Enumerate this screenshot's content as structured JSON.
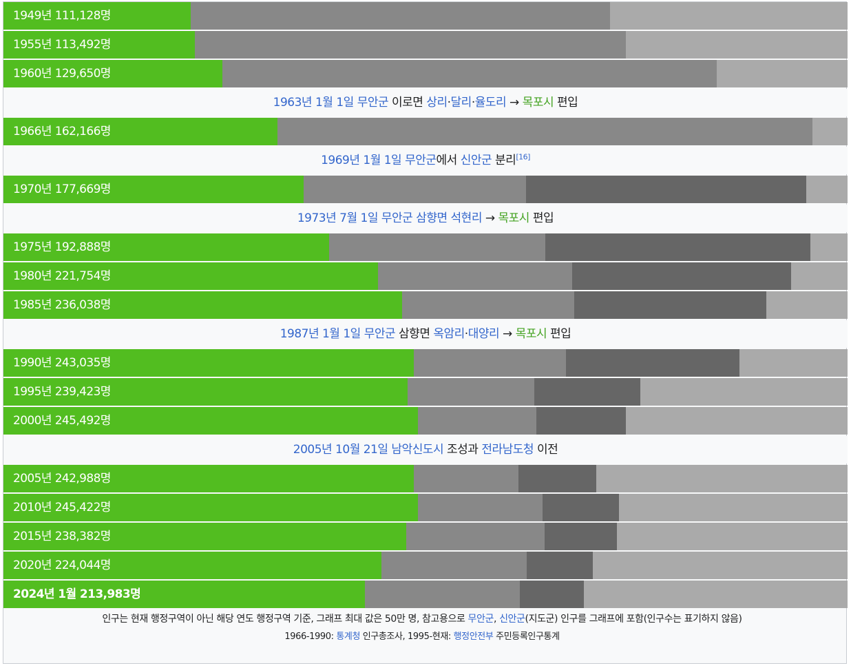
{
  "chart_data": {
    "type": "bar",
    "orientation": "horizontal",
    "xlim": [
      0,
      500000
    ],
    "colors": {
      "mokpo": "#52bd20",
      "muan": "#888888",
      "sinan": "#666666",
      "rest": "#aaaaaa"
    },
    "rows": [
      {
        "kind": "bar",
        "label": "1949년 111,128명",
        "segments": [
          111128,
          248000
        ],
        "bold": false
      },
      {
        "kind": "bar",
        "label": "1955년 113,492명",
        "segments": [
          113492,
          255000
        ],
        "bold": false
      },
      {
        "kind": "bar",
        "label": "1960년 129,650명",
        "segments": [
          129650,
          293000
        ],
        "bold": false
      },
      {
        "kind": "event",
        "parts": [
          {
            "t": "1963년 1월 1일",
            "c": "blue"
          },
          {
            "t": " ",
            "c": ""
          },
          {
            "t": "무안군",
            "c": "blue"
          },
          {
            "t": " 이로면 ",
            "c": ""
          },
          {
            "t": "상리",
            "c": "blue"
          },
          {
            "t": "·",
            "c": ""
          },
          {
            "t": "달리",
            "c": "blue"
          },
          {
            "t": "·",
            "c": ""
          },
          {
            "t": "율도리",
            "c": "blue"
          },
          {
            "t": " → ",
            "c": ""
          },
          {
            "t": "목포시",
            "c": "green"
          },
          {
            "t": " 편입",
            "c": ""
          }
        ]
      },
      {
        "kind": "bar",
        "label": "1966년 162,166명",
        "segments": [
          162166,
          317000
        ],
        "bold": false
      },
      {
        "kind": "event",
        "parts": [
          {
            "t": "1969년 1월 1일",
            "c": "blue"
          },
          {
            "t": " ",
            "c": ""
          },
          {
            "t": "무안군",
            "c": "blue"
          },
          {
            "t": "에서 ",
            "c": ""
          },
          {
            "t": "신안군",
            "c": "blue"
          },
          {
            "t": " 분리",
            "c": ""
          },
          {
            "t": "[16]",
            "c": "blue",
            "sup": true
          }
        ]
      },
      {
        "kind": "bar",
        "label": "1970년 177,669명",
        "segments": [
          177669,
          132000,
          166000
        ],
        "bold": false
      },
      {
        "kind": "event",
        "parts": [
          {
            "t": "1973년 7월 1일",
            "c": "blue"
          },
          {
            "t": " ",
            "c": ""
          },
          {
            "t": "무안군",
            "c": "blue"
          },
          {
            "t": " ",
            "c": ""
          },
          {
            "t": "삼향면",
            "c": "blue"
          },
          {
            "t": " ",
            "c": ""
          },
          {
            "t": "석현리",
            "c": "blue"
          },
          {
            "t": " → ",
            "c": ""
          },
          {
            "t": "목포시",
            "c": "green"
          },
          {
            "t": " 편입",
            "c": ""
          }
        ]
      },
      {
        "kind": "bar",
        "label": "1975년 192,888명",
        "segments": [
          192888,
          128000,
          157000
        ],
        "bold": false
      },
      {
        "kind": "bar",
        "label": "1980년 221,754명",
        "segments": [
          221754,
          115000,
          130000
        ],
        "bold": false
      },
      {
        "kind": "bar",
        "label": "1985년 236,038명",
        "segments": [
          236038,
          102000,
          114000
        ],
        "bold": false
      },
      {
        "kind": "event",
        "parts": [
          {
            "t": "1987년 1월 1일",
            "c": "blue"
          },
          {
            "t": " ",
            "c": ""
          },
          {
            "t": "무안군",
            "c": "blue"
          },
          {
            "t": " 삼향면 ",
            "c": ""
          },
          {
            "t": "옥암리",
            "c": "blue"
          },
          {
            "t": "·",
            "c": ""
          },
          {
            "t": "대양리",
            "c": "blue"
          },
          {
            "t": " → ",
            "c": ""
          },
          {
            "t": "목포시",
            "c": "green"
          },
          {
            "t": " 편입",
            "c": ""
          }
        ]
      },
      {
        "kind": "bar",
        "label": "1990년 243,035명",
        "segments": [
          243035,
          90000,
          103000
        ],
        "bold": false
      },
      {
        "kind": "bar",
        "label": "1995년 239,423명",
        "segments": [
          239423,
          75000,
          63000
        ],
        "bold": false
      },
      {
        "kind": "bar",
        "label": "2000년 245,492명",
        "segments": [
          245492,
          70000,
          53000
        ],
        "bold": false
      },
      {
        "kind": "event",
        "parts": [
          {
            "t": "2005년 10월 21일",
            "c": "blue"
          },
          {
            "t": " ",
            "c": ""
          },
          {
            "t": "남악신도시",
            "c": "blue"
          },
          {
            "t": " 조성과 ",
            "c": ""
          },
          {
            "t": "전라남도청",
            "c": "blue"
          },
          {
            "t": " 이전",
            "c": ""
          }
        ]
      },
      {
        "kind": "bar",
        "label": "2005년 242,988명",
        "segments": [
          242988,
          62000,
          46000
        ],
        "bold": false
      },
      {
        "kind": "bar",
        "label": "2010년 245,422명",
        "segments": [
          245422,
          74000,
          45000
        ],
        "bold": false
      },
      {
        "kind": "bar",
        "label": "2015년 238,382명",
        "segments": [
          238382,
          82000,
          43000
        ],
        "bold": false
      },
      {
        "kind": "bar",
        "label": "2020년 224,044명",
        "segments": [
          224044,
          86000,
          39000
        ],
        "bold": false
      },
      {
        "kind": "bar",
        "label": "2024년 1월 213,983명",
        "segments": [
          213983,
          92000,
          38000
        ],
        "bold": true
      }
    ]
  },
  "note": {
    "line1": [
      {
        "t": "인구는 현재 행정구역이 아닌 해당 연도 행정구역 기준, 그래프 최대 값은 50만 명, 참고용으로 ",
        "c": ""
      },
      {
        "t": "무안군",
        "c": "blue"
      },
      {
        "t": ", ",
        "c": ""
      },
      {
        "t": "신안군",
        "c": "blue"
      },
      {
        "t": "(지도군) 인구를 그래프에 포함(인구수는 표기하지 않음)",
        "c": ""
      }
    ],
    "line2": [
      {
        "t": "1966-1990: ",
        "c": ""
      },
      {
        "t": "통계청",
        "c": "blue"
      },
      {
        "t": " 인구총조사, 1995-현재: ",
        "c": ""
      },
      {
        "t": "행정안전부",
        "c": "blue"
      },
      {
        "t": " 주민등록인구통계",
        "c": ""
      }
    ]
  }
}
